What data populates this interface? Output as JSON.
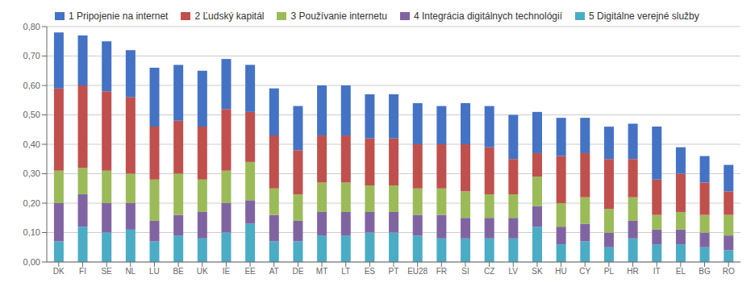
{
  "chart_data": {
    "type": "bar",
    "stacked": true,
    "categories": [
      "DK",
      "FI",
      "SE",
      "NL",
      "LU",
      "BE",
      "UK",
      "IE",
      "EE",
      "AT",
      "DE",
      "MT",
      "LT",
      "ES",
      "PT",
      "EU28",
      "FR",
      "SI",
      "CZ",
      "LV",
      "SK",
      "HU",
      "CY",
      "PL",
      "HR",
      "IT",
      "EL",
      "BG",
      "RO"
    ],
    "series": [
      {
        "name": "1 Pripojenie na internet",
        "color": "#4472c4",
        "values": [
          0.19,
          0.17,
          0.17,
          0.16,
          0.2,
          0.19,
          0.19,
          0.17,
          0.16,
          0.16,
          0.15,
          0.17,
          0.17,
          0.15,
          0.15,
          0.14,
          0.13,
          0.14,
          0.14,
          0.15,
          0.14,
          0.13,
          0.12,
          0.11,
          0.12,
          0.18,
          0.09,
          0.09,
          0.09
        ]
      },
      {
        "name": "2 Ľudský kapitál",
        "color": "#c0504d",
        "values": [
          0.28,
          0.28,
          0.27,
          0.26,
          0.18,
          0.18,
          0.18,
          0.21,
          0.17,
          0.18,
          0.15,
          0.16,
          0.16,
          0.16,
          0.16,
          0.15,
          0.15,
          0.16,
          0.16,
          0.12,
          0.08,
          0.16,
          0.15,
          0.17,
          0.13,
          0.12,
          0.13,
          0.11,
          0.08
        ]
      },
      {
        "name": "3 Používanie internetu",
        "color": "#9bbb59",
        "values": [
          0.11,
          0.09,
          0.11,
          0.1,
          0.14,
          0.14,
          0.11,
          0.11,
          0.13,
          0.09,
          0.09,
          0.1,
          0.1,
          0.09,
          0.09,
          0.09,
          0.09,
          0.09,
          0.08,
          0.08,
          0.1,
          0.08,
          0.09,
          0.08,
          0.08,
          0.05,
          0.06,
          0.06,
          0.07
        ]
      },
      {
        "name": "4 Integrácia digitálnych technológií",
        "color": "#8064a2",
        "values": [
          0.13,
          0.11,
          0.1,
          0.09,
          0.07,
          0.07,
          0.09,
          0.1,
          0.08,
          0.09,
          0.07,
          0.08,
          0.08,
          0.07,
          0.07,
          0.07,
          0.08,
          0.07,
          0.07,
          0.07,
          0.07,
          0.06,
          0.06,
          0.05,
          0.06,
          0.05,
          0.05,
          0.05,
          0.05
        ]
      },
      {
        "name": "5 Digitálne verejné služby",
        "color": "#4bacc6",
        "values": [
          0.07,
          0.12,
          0.1,
          0.11,
          0.07,
          0.09,
          0.08,
          0.1,
          0.13,
          0.07,
          0.07,
          0.09,
          0.09,
          0.1,
          0.1,
          0.09,
          0.08,
          0.08,
          0.08,
          0.08,
          0.12,
          0.06,
          0.07,
          0.05,
          0.08,
          0.06,
          0.06,
          0.05,
          0.04
        ]
      }
    ],
    "ylim": [
      0.0,
      0.8
    ],
    "yticks": [
      {
        "value": 0.0,
        "label": "0,00"
      },
      {
        "value": 0.1,
        "label": "0,10"
      },
      {
        "value": 0.2,
        "label": "0,20"
      },
      {
        "value": 0.3,
        "label": "0,30"
      },
      {
        "value": 0.4,
        "label": "0,40"
      },
      {
        "value": 0.5,
        "label": "0,50"
      },
      {
        "value": 0.6,
        "label": "0,60"
      },
      {
        "value": 0.7,
        "label": "0,70"
      },
      {
        "value": 0.8,
        "label": "0,80"
      }
    ],
    "grid": true,
    "legend": "upper left"
  }
}
